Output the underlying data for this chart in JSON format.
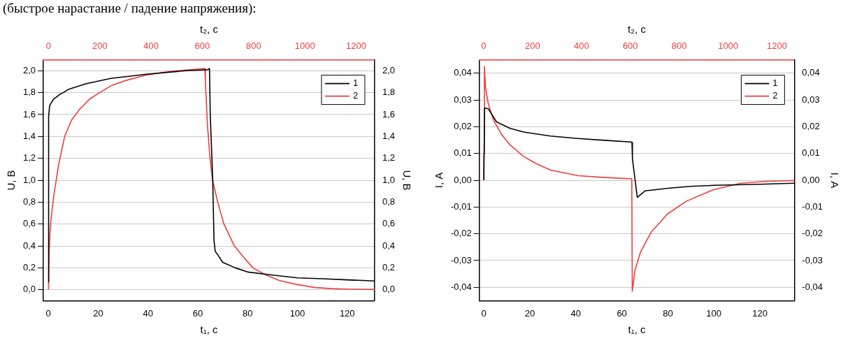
{
  "chart_data": [
    {
      "type": "line",
      "annotations": [
        "(быстрое нарастание / падение напряжения):"
      ],
      "xlabel": "t₁, с",
      "x2label": "t₂, с",
      "ylabel": "U, В",
      "y2label": "U, В",
      "xlim": [
        -2,
        131
      ],
      "xticks": [
        0,
        20,
        40,
        60,
        80,
        100,
        120
      ],
      "x2lim": [
        -20,
        1272
      ],
      "x2ticks": [
        0,
        200,
        400,
        600,
        800,
        1000,
        1200
      ],
      "ylim": [
        -0.1,
        2.1
      ],
      "yticks": [
        {
          "value": 0,
          "label": "0,0"
        },
        {
          "value": 0.2,
          "label": "0,2"
        },
        {
          "value": 0.4,
          "label": "0,4"
        },
        {
          "value": 0.6,
          "label": "0,6"
        },
        {
          "value": 0.8,
          "label": "0,8"
        },
        {
          "value": 1,
          "label": "1,0"
        },
        {
          "value": 1.2,
          "label": "1,2"
        },
        {
          "value": 1.4,
          "label": "1,4"
        },
        {
          "value": 1.6,
          "label": "1,6"
        },
        {
          "value": 1.8,
          "label": "1,8"
        },
        {
          "value": 2,
          "label": "2,0"
        }
      ],
      "y2lim": [
        -0.1,
        2.1
      ],
      "y2ticks": [
        {
          "value": 0,
          "label": "0,0"
        },
        {
          "value": 0.2,
          "label": "0,2"
        },
        {
          "value": 0.4,
          "label": "0,4"
        },
        {
          "value": 0.6,
          "label": "0,6"
        },
        {
          "value": 0.8,
          "label": "0,8"
        },
        {
          "value": 1,
          "label": "1,0"
        },
        {
          "value": 1.2,
          "label": "1,2"
        },
        {
          "value": 1.4,
          "label": "1,4"
        },
        {
          "value": 1.6,
          "label": "1,6"
        },
        {
          "value": 1.8,
          "label": "1,8"
        },
        {
          "value": 2,
          "label": "2,0"
        }
      ],
      "grid": "y",
      "legend": "top right",
      "marker": "none",
      "line_style": "solid",
      "series": [
        {
          "name": "1",
          "color": "#000000",
          "x": [
            0,
            0.1,
            0.5,
            2,
            5,
            6,
            8,
            15,
            25,
            40,
            55,
            64,
            64.7,
            65,
            66,
            66.5,
            67,
            68,
            70,
            75,
            80,
            90,
            100,
            110,
            120,
            131
          ],
          "values": [
            0.07,
            1.58,
            1.68,
            1.74,
            1.79,
            1.8,
            1.83,
            1.88,
            1.93,
            1.97,
            2.0,
            2.01,
            2.02,
            1.6,
            1.0,
            0.45,
            0.35,
            0.32,
            0.25,
            0.2,
            0.162,
            0.134,
            0.108,
            0.1,
            0.09,
            0.08
          ]
        },
        {
          "name": "2",
          "color": "#f03c3c",
          "axis": "x2",
          "x": [
            0,
            2,
            5,
            10,
            20,
            30,
            40,
            63,
            90,
            122,
            160,
            199,
            250,
            300,
            380,
            450,
            500,
            610,
            612,
            620,
            630,
            640,
            660,
            684,
            725,
            760,
            797,
            852,
            900,
            963,
            1040,
            1100,
            1173,
            1272
          ],
          "values": [
            0,
            0.3,
            0.5,
            0.65,
            0.85,
            1.0,
            1.15,
            1.4,
            1.55,
            1.65,
            1.74,
            1.8,
            1.87,
            1.91,
            1.96,
            1.985,
            2.0,
            2.02,
            1.9,
            1.5,
            1.2,
            1.0,
            0.8,
            0.6,
            0.4,
            0.3,
            0.2,
            0.13,
            0.085,
            0.05,
            0.02,
            0.01,
            0.005,
            0.002
          ]
        }
      ]
    },
    {
      "type": "line",
      "xlabel": "t₁, с",
      "x2label": "t₂, с",
      "ylabel": "I, А",
      "y2label": "I, А",
      "xlim": [
        -2,
        135
      ],
      "xticks": [
        0,
        20,
        40,
        60,
        80,
        100,
        120
      ],
      "x2lim": [
        -18,
        1271
      ],
      "x2ticks": [
        0,
        200,
        400,
        600,
        800,
        1000,
        1200
      ],
      "ylim": [
        -0.045,
        0.045
      ],
      "yticks": [
        {
          "value": -0.04,
          "label": "-0,04"
        },
        {
          "value": -0.03,
          "label": "-0,03"
        },
        {
          "value": -0.02,
          "label": "-0,02"
        },
        {
          "value": -0.01,
          "label": "-0,01"
        },
        {
          "value": 0,
          "label": "0,00"
        },
        {
          "value": 0.01,
          "label": "0,01"
        },
        {
          "value": 0.02,
          "label": "0,02"
        },
        {
          "value": 0.03,
          "label": "0,03"
        },
        {
          "value": 0.04,
          "label": "0,04"
        }
      ],
      "y2lim": [
        -0.045,
        0.045
      ],
      "y2ticks": [
        {
          "value": -0.04,
          "label": "-0,04"
        },
        {
          "value": -0.03,
          "label": "-0,03"
        },
        {
          "value": -0.02,
          "label": "-0,02"
        },
        {
          "value": -0.01,
          "label": "-0,01"
        },
        {
          "value": 0,
          "label": "0,00"
        },
        {
          "value": 0.01,
          "label": "0,01"
        },
        {
          "value": 0.02,
          "label": "0,02"
        },
        {
          "value": 0.03,
          "label": "0,03"
        },
        {
          "value": 0.04,
          "label": "0,04"
        }
      ],
      "grid": "y",
      "legend": "top right",
      "marker": "none",
      "line_style": "solid",
      "series": [
        {
          "name": "1",
          "color": "#000000",
          "x": [
            0,
            0.3,
            2,
            5.5,
            11.4,
            17.3,
            29,
            40.8,
            52.6,
            64,
            64.4,
            64.6,
            66.7,
            70,
            80,
            90,
            100,
            120,
            135
          ],
          "values": [
            0,
            0.027,
            0.0266,
            0.0218,
            0.0194,
            0.018,
            0.0165,
            0.0156,
            0.0149,
            0.0143,
            0.0141,
            0.008,
            -0.0064,
            -0.004,
            -0.003,
            -0.0023,
            -0.0019,
            -0.0015,
            -0.0011
          ]
        },
        {
          "name": "2",
          "color": "#f03c3c",
          "axis": "x2",
          "x": [
            0,
            1,
            3,
            8,
            19,
            41,
            74,
            108,
            163,
            219,
            274,
            386,
            497,
            597,
            606,
            608,
            619,
            641,
            686,
            752,
            830,
            941,
            1052,
            1163,
            1271
          ],
          "values": [
            0,
            0.01,
            0.0425,
            0.0343,
            0.0285,
            0.0223,
            0.017,
            0.0132,
            0.0089,
            0.006,
            0.0038,
            0.0017,
            0.001,
            0.0006,
            0.0005,
            -0.0415,
            -0.0337,
            -0.027,
            -0.0193,
            -0.0126,
            -0.0078,
            -0.0035,
            -0.0011,
            -0.0004,
            -0.0001
          ]
        }
      ]
    }
  ]
}
